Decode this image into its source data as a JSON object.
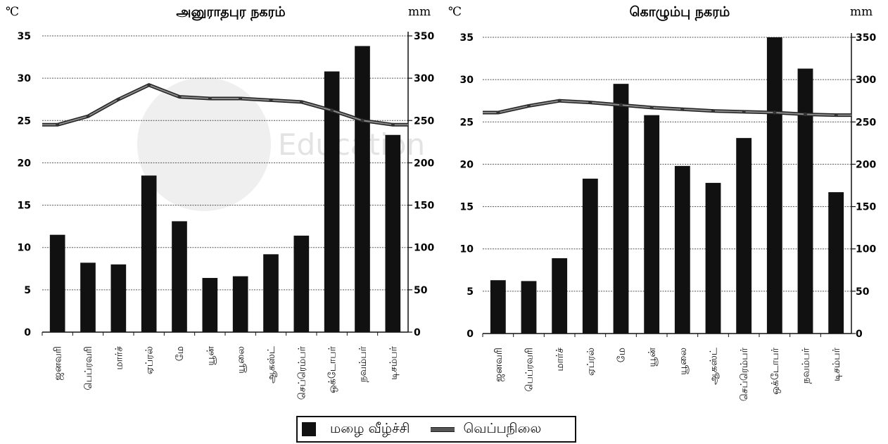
{
  "chart_data": [
    {
      "type": "bar",
      "title": "அனுராதபுர நகரம்",
      "left_unit": "℃",
      "right_unit": "mm",
      "categories": [
        "ஜனவரி",
        "பெப்ரவரி",
        "மார்ச்",
        "ஏப்ரல்",
        "மே",
        "யூன்",
        "யூலை",
        "ஆகஸ்ட்",
        "செப்ரெம்பர்",
        "ஒக்டோபர்",
        "நவம்பர்",
        "டிசம்பர்"
      ],
      "series": [
        {
          "name": "மழை வீழ்ச்சி",
          "kind": "bar",
          "axis": "right",
          "values": [
            115,
            82,
            80,
            185,
            131,
            64,
            66,
            92,
            114,
            308,
            338,
            233
          ]
        },
        {
          "name": "வெப்பநிலை",
          "kind": "line",
          "axis": "left",
          "values": [
            24.5,
            25.5,
            27.5,
            29.2,
            27.8,
            27.6,
            27.6,
            27.4,
            27.2,
            26.2,
            25.0,
            24.5
          ]
        }
      ],
      "left_ylim": [
        0,
        35
      ],
      "left_ticks": [
        0,
        5,
        10,
        15,
        20,
        25,
        30,
        35
      ],
      "right_ylim": [
        0,
        350
      ],
      "right_ticks": [
        0,
        50,
        100,
        150,
        200,
        250,
        300,
        350
      ],
      "grid": true
    },
    {
      "type": "bar",
      "title": "கொழும்பு நகரம்",
      "left_unit": "℃",
      "right_unit": "mm",
      "categories": [
        "ஜனவரி",
        "பெப்ரவரி",
        "மார்ச்",
        "ஏப்ரல்",
        "மே",
        "யூன்",
        "யூலை",
        "ஆகஸ்ட்",
        "செப்ரெம்பர்",
        "ஒக்டோபர்",
        "நவம்பர்",
        "டிசம்பர்"
      ],
      "series": [
        {
          "name": "மழை வீழ்ச்சி",
          "kind": "bar",
          "axis": "right",
          "values": [
            63,
            62,
            89,
            183,
            295,
            258,
            198,
            178,
            231,
            350,
            313,
            167
          ]
        },
        {
          "name": "வெப்பநிலை",
          "kind": "line",
          "axis": "left",
          "values": [
            26.1,
            26.9,
            27.5,
            27.3,
            27.0,
            26.7,
            26.5,
            26.3,
            26.2,
            26.1,
            25.9,
            25.8
          ]
        }
      ],
      "left_ylim": [
        0,
        35
      ],
      "left_ticks": [
        0,
        5,
        10,
        15,
        20,
        25,
        30,
        35
      ],
      "right_ylim": [
        0,
        350
      ],
      "right_ticks": [
        0,
        50,
        100,
        150,
        200,
        250,
        300,
        350
      ],
      "grid": true
    }
  ],
  "legend": {
    "rain_label": "மழை வீழ்ச்சி",
    "temp_label": "வெப்பநிலை"
  },
  "watermark": {
    "text": "Education"
  },
  "colors": {
    "bar": "#111111",
    "line": "#555555",
    "grid": "#444444",
    "watermark": "#e6e6e6"
  }
}
